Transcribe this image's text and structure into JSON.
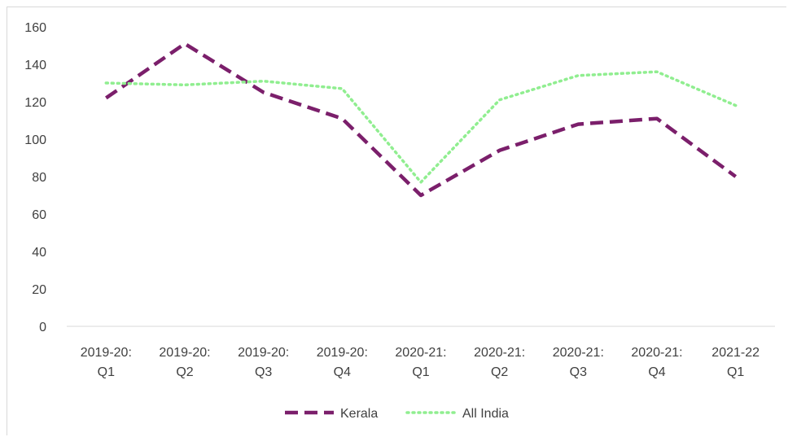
{
  "chart_data": {
    "type": "line",
    "title": "",
    "xlabel": "",
    "ylabel": "",
    "ylim": [
      0,
      160
    ],
    "yticks": [
      0,
      20,
      40,
      60,
      80,
      100,
      120,
      140,
      160
    ],
    "grid": false,
    "legend_position": "bottom",
    "categories": [
      [
        "2019-20:",
        "Q1"
      ],
      [
        "2019-20:",
        "Q2"
      ],
      [
        "2019-20:",
        "Q3"
      ],
      [
        "2019-20:",
        "Q4"
      ],
      [
        "2020-21:",
        "Q1"
      ],
      [
        "2020-21:",
        "Q2"
      ],
      [
        "2020-21:",
        "Q3"
      ],
      [
        "2020-21:",
        "Q4"
      ],
      [
        "2021-22",
        "Q1"
      ]
    ],
    "series": [
      {
        "name": "Kerala",
        "values": [
          122,
          151,
          125,
          111,
          70,
          94,
          108,
          111,
          80
        ],
        "color": "#7b1f6b",
        "style": "dashed"
      },
      {
        "name": "All India",
        "values": [
          130,
          129,
          131,
          127,
          77,
          121,
          134,
          136,
          118
        ],
        "color": "#90ee90",
        "style": "dotted"
      }
    ]
  }
}
